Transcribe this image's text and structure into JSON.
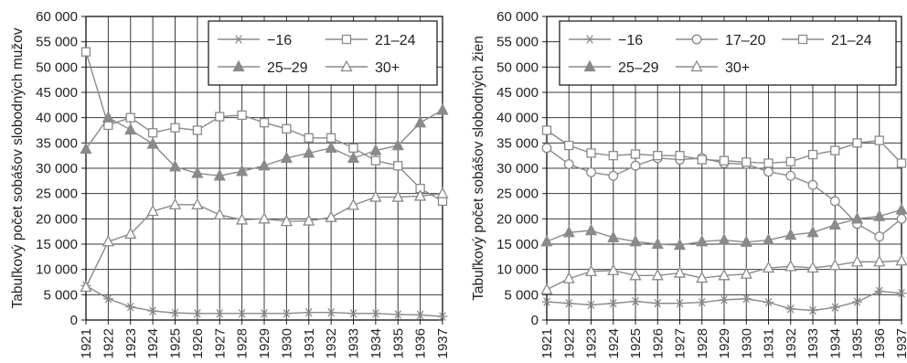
{
  "chart_data": [
    {
      "type": "line",
      "ylabel": "Tabuľkový počet sobášov slobodných mužov",
      "xlabel": "",
      "ylim": [
        0,
        60000
      ],
      "yticks": [
        "0",
        "5 000",
        "10 000",
        "15 000",
        "20 000",
        "25 000",
        "30 000",
        "35 000",
        "40 000",
        "45 000",
        "50 000",
        "55 000",
        "60 000"
      ],
      "x": [
        "1921",
        "1922",
        "1923",
        "1924",
        "1925",
        "1926",
        "1927",
        "1928",
        "1929",
        "1930",
        "1931",
        "1932",
        "1933",
        "1934",
        "1935",
        "1936",
        "1937"
      ],
      "grid": true,
      "legend_position": "top-right",
      "legend_rows": [
        [
          0,
          1
        ],
        [
          2,
          3
        ]
      ],
      "series": [
        {
          "name": "−16",
          "marker": "asterisk",
          "color": "#8a8a8a",
          "values": [
            6800,
            4200,
            2600,
            1800,
            1400,
            1300,
            1300,
            1300,
            1300,
            1300,
            1500,
            1500,
            1300,
            1300,
            1100,
            1000,
            700
          ]
        },
        {
          "name": "21–24",
          "marker": "square-open",
          "color": "#8a8a8a",
          "values": [
            53000,
            38500,
            40000,
            37000,
            38000,
            37500,
            40200,
            40500,
            39000,
            37800,
            36000,
            36000,
            34000,
            31500,
            30500,
            26000,
            23500
          ]
        },
        {
          "name": "25–29",
          "marker": "triangle-filled",
          "color": "#8a8a8a",
          "values": [
            33800,
            40000,
            37600,
            34800,
            30300,
            29000,
            28500,
            29400,
            30500,
            32000,
            33000,
            34000,
            32000,
            33500,
            34500,
            39000,
            41500
          ]
        },
        {
          "name": "30+",
          "marker": "triangle-open",
          "color": "#8a8a8a",
          "values": [
            6500,
            15500,
            17000,
            21500,
            22800,
            22800,
            20800,
            19800,
            20000,
            19500,
            19600,
            20300,
            22700,
            24300,
            24300,
            24500,
            25000
          ]
        }
      ]
    },
    {
      "type": "line",
      "ylabel": "Tabuľkový počet sobášov slobodných žien",
      "xlabel": "",
      "ylim": [
        0,
        60000
      ],
      "yticks": [
        "0",
        "5 000",
        "10 000",
        "15 000",
        "20 000",
        "25 000",
        "30 000",
        "35 000",
        "40 000",
        "45 000",
        "50 000",
        "55 000",
        "60 000"
      ],
      "x": [
        "1921",
        "1922",
        "1923",
        "1924",
        "1925",
        "1926",
        "1927",
        "1928",
        "1929",
        "1930",
        "1931",
        "1932",
        "1933",
        "1934",
        "1935",
        "1936",
        "1937"
      ],
      "grid": true,
      "legend_position": "top-right",
      "legend_rows": [
        [
          0,
          1,
          2
        ],
        [
          3,
          4
        ]
      ],
      "series": [
        {
          "name": "−16",
          "marker": "asterisk",
          "color": "#8a8a8a",
          "values": [
            3600,
            3300,
            3000,
            3300,
            3700,
            3300,
            3300,
            3500,
            4000,
            4200,
            3500,
            2200,
            1900,
            2500,
            3600,
            5700,
            5300
          ]
        },
        {
          "name": "17–20",
          "marker": "circle-open",
          "color": "#8a8a8a",
          "values": [
            34000,
            30800,
            29200,
            28500,
            30500,
            32000,
            31700,
            32000,
            31000,
            30800,
            29300,
            28500,
            26700,
            23500,
            19000,
            16500,
            20000
          ]
        },
        {
          "name": "21–24",
          "marker": "square-open",
          "color": "#8a8a8a",
          "values": [
            37500,
            34500,
            33000,
            32500,
            32800,
            32500,
            32500,
            31700,
            31500,
            31200,
            31000,
            31300,
            32700,
            33500,
            35000,
            35500,
            31000
          ]
        },
        {
          "name": "25–29",
          "marker": "triangle-filled",
          "color": "#8a8a8a",
          "values": [
            15500,
            17300,
            17700,
            16300,
            15500,
            15000,
            14800,
            15500,
            15800,
            15400,
            15800,
            16800,
            17300,
            18800,
            20000,
            20500,
            21800
          ]
        },
        {
          "name": "30+",
          "marker": "triangle-open",
          "color": "#8a8a8a",
          "values": [
            6000,
            8200,
            9600,
            9800,
            8800,
            8800,
            9300,
            8300,
            8800,
            9100,
            10300,
            10600,
            10300,
            10800,
            11500,
            11500,
            11700
          ]
        }
      ]
    }
  ]
}
